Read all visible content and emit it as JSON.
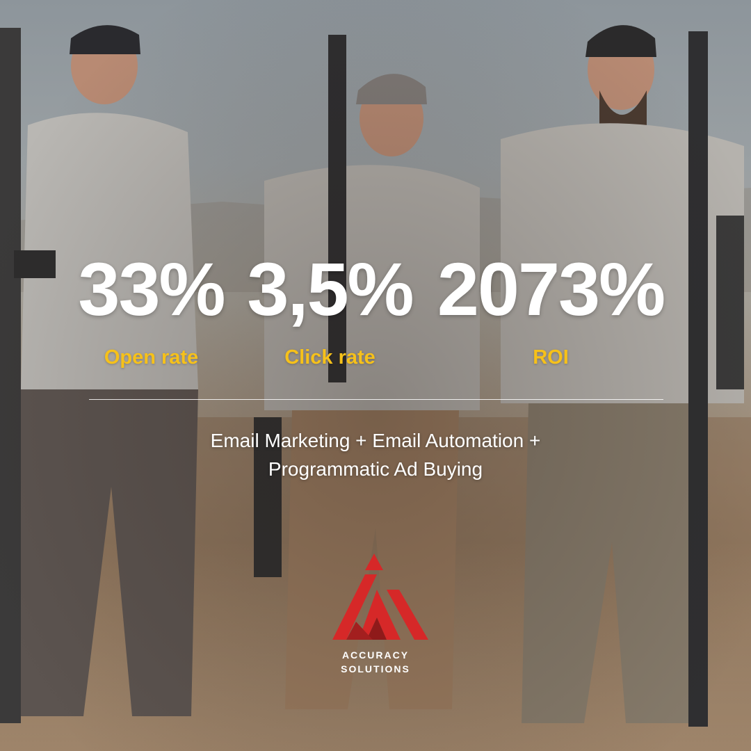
{
  "stats": [
    {
      "value": "33%",
      "label": "Open rate"
    },
    {
      "value": "3,5%",
      "label": "Click rate"
    },
    {
      "value": "2073%",
      "label": "ROI"
    }
  ],
  "tagline": {
    "line1": "Email Marketing + Email Automation +",
    "line2": "Programmatic Ad Buying"
  },
  "brand": {
    "name_line1": "ACCURACY",
    "name_line2": "SOLUTIONS",
    "logo_icon": "accuracy-solutions-logo-icon",
    "colors": {
      "logo_red": "#d62828",
      "logo_dark_red": "#8f1a1a"
    }
  },
  "colors": {
    "accent_yellow": "#f6c11a",
    "text_white": "#ffffff"
  },
  "background": {
    "icon": "three-shooters-with-rifles-photo"
  }
}
